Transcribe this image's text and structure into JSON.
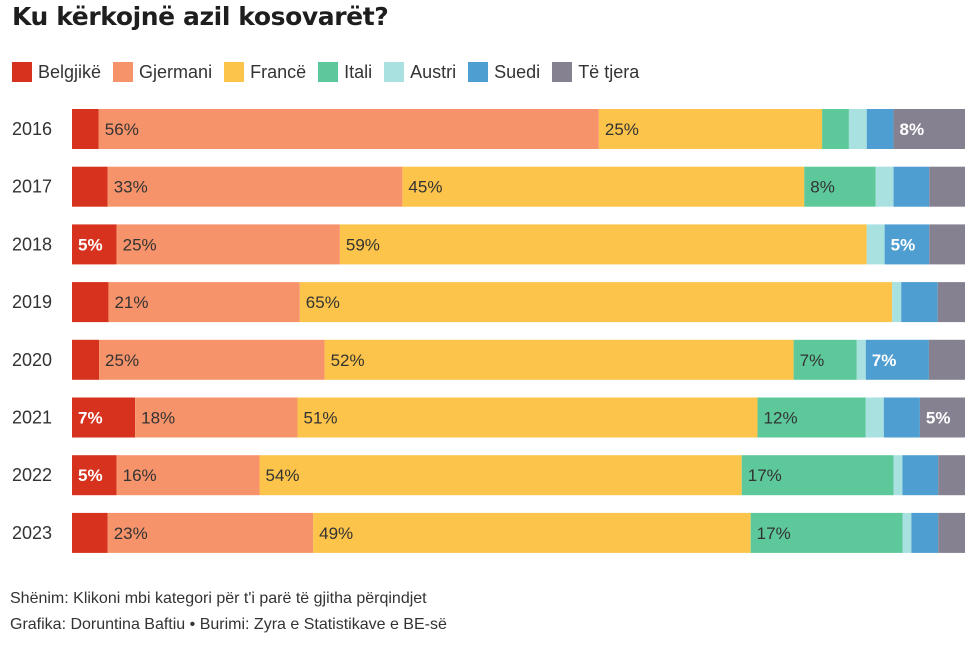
{
  "title": "Ku kërkojnë azil kosovarët?",
  "note": "Shënim: Klikoni mbi kategori për t'i parë të gjitha përqindjet",
  "credit": "Grafika: Doruntina Baftiu • Burimi: Zyra e Statistikave e BE-së",
  "chart_data": {
    "type": "bar",
    "orientation": "horizontal",
    "stacked": true,
    "normalized": "100%",
    "categories": [
      "2016",
      "2017",
      "2018",
      "2019",
      "2020",
      "2021",
      "2022",
      "2023"
    ],
    "series": [
      {
        "name": "Belgjikë",
        "color": "#d6321e",
        "values": [
          3,
          4,
          5,
          4,
          3,
          7,
          5,
          4
        ],
        "labels": [
          "",
          "",
          "5%",
          "",
          "",
          "7%",
          "5%",
          ""
        ]
      },
      {
        "name": "Gjermani",
        "color": "#f7936a",
        "values": [
          56,
          33,
          25,
          21,
          25,
          18,
          16,
          23
        ],
        "labels": [
          "56%",
          "33%",
          "25%",
          "21%",
          "25%",
          "18%",
          "16%",
          "23%"
        ]
      },
      {
        "name": "Francë",
        "color": "#fcc44a",
        "values": [
          25,
          45,
          59,
          65,
          52,
          51,
          54,
          49
        ],
        "labels": [
          "25%",
          "45%",
          "59%",
          "65%",
          "52%",
          "51%",
          "54%",
          "49%"
        ]
      },
      {
        "name": "Itali",
        "color": "#5dc899",
        "values": [
          3,
          8,
          0,
          0,
          7,
          12,
          17,
          17
        ],
        "labels": [
          "",
          "8%",
          "",
          "",
          "7%",
          "12%",
          "17%",
          "17%"
        ]
      },
      {
        "name": "Austri",
        "color": "#a9e1e1",
        "values": [
          2,
          2,
          2,
          1,
          1,
          2,
          1,
          1
        ],
        "labels": [
          "",
          "",
          "",
          "",
          "",
          "",
          "",
          ""
        ]
      },
      {
        "name": "Suedi",
        "color": "#4e9ed1",
        "values": [
          3,
          4,
          5,
          4,
          7,
          4,
          4,
          3
        ],
        "labels": [
          "",
          "",
          "5%",
          "",
          "7%",
          "",
          "",
          ""
        ]
      },
      {
        "name": "Të tjera",
        "color": "#858191",
        "values": [
          8,
          4,
          4,
          3,
          4,
          5,
          3,
          3
        ],
        "labels": [
          "8%",
          "",
          "",
          "",
          "",
          "5%",
          "",
          ""
        ]
      }
    ]
  }
}
